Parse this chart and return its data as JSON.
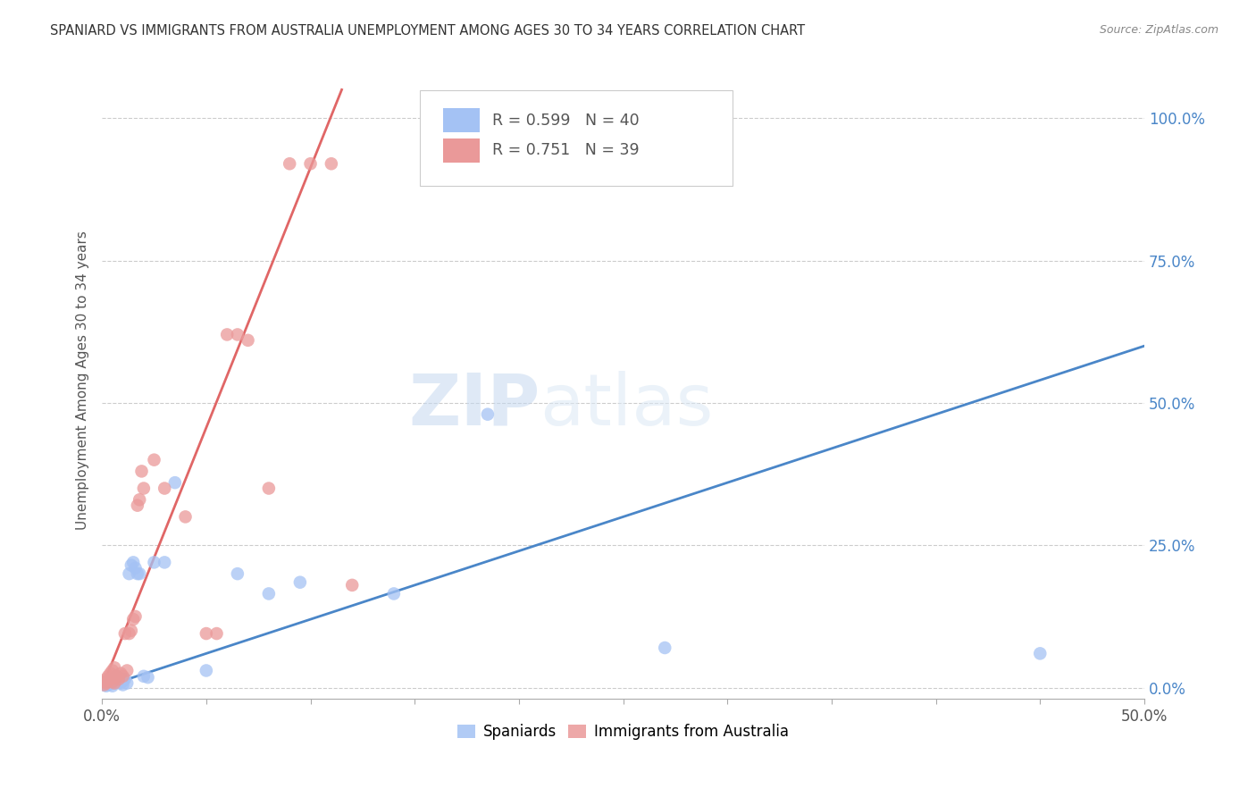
{
  "title": "SPANIARD VS IMMIGRANTS FROM AUSTRALIA UNEMPLOYMENT AMONG AGES 30 TO 34 YEARS CORRELATION CHART",
  "source": "Source: ZipAtlas.com",
  "ylabel": "Unemployment Among Ages 30 to 34 years",
  "x_min": 0.0,
  "x_max": 0.5,
  "y_min": -0.02,
  "y_max": 1.1,
  "blue_R": "0.599",
  "blue_N": "40",
  "pink_R": "0.751",
  "pink_N": "39",
  "legend_label_blue": "Spaniards",
  "legend_label_pink": "Immigrants from Australia",
  "blue_color": "#a4c2f4",
  "pink_color": "#ea9999",
  "blue_line_color": "#4a86c8",
  "pink_line_color": "#e06666",
  "watermark_zip": "ZIP",
  "watermark_atlas": "atlas",
  "blue_dots_x": [
    0.001,
    0.001,
    0.002,
    0.002,
    0.003,
    0.003,
    0.004,
    0.004,
    0.005,
    0.005,
    0.006,
    0.006,
    0.007,
    0.007,
    0.008,
    0.008,
    0.009,
    0.01,
    0.01,
    0.011,
    0.012,
    0.013,
    0.014,
    0.015,
    0.016,
    0.017,
    0.018,
    0.02,
    0.022,
    0.025,
    0.03,
    0.035,
    0.05,
    0.065,
    0.08,
    0.095,
    0.14,
    0.185,
    0.27,
    0.45
  ],
  "blue_dots_y": [
    0.005,
    0.01,
    0.003,
    0.008,
    0.005,
    0.012,
    0.007,
    0.015,
    0.003,
    0.01,
    0.008,
    0.015,
    0.012,
    0.02,
    0.01,
    0.018,
    0.008,
    0.005,
    0.012,
    0.015,
    0.008,
    0.2,
    0.215,
    0.22,
    0.21,
    0.2,
    0.2,
    0.02,
    0.018,
    0.22,
    0.22,
    0.36,
    0.03,
    0.2,
    0.165,
    0.185,
    0.165,
    0.48,
    0.07,
    0.06
  ],
  "pink_dots_x": [
    0.001,
    0.001,
    0.002,
    0.002,
    0.003,
    0.003,
    0.004,
    0.004,
    0.005,
    0.005,
    0.006,
    0.006,
    0.007,
    0.008,
    0.009,
    0.01,
    0.011,
    0.012,
    0.013,
    0.014,
    0.015,
    0.016,
    0.017,
    0.018,
    0.019,
    0.02,
    0.025,
    0.03,
    0.04,
    0.05,
    0.055,
    0.06,
    0.065,
    0.07,
    0.08,
    0.09,
    0.1,
    0.11,
    0.12
  ],
  "pink_dots_y": [
    0.005,
    0.01,
    0.008,
    0.015,
    0.012,
    0.02,
    0.015,
    0.025,
    0.01,
    0.03,
    0.008,
    0.035,
    0.02,
    0.015,
    0.025,
    0.02,
    0.095,
    0.03,
    0.095,
    0.1,
    0.12,
    0.125,
    0.32,
    0.33,
    0.38,
    0.35,
    0.4,
    0.35,
    0.3,
    0.095,
    0.095,
    0.62,
    0.62,
    0.61,
    0.35,
    0.92,
    0.92,
    0.92,
    0.18
  ],
  "blue_line_x": [
    0.0,
    0.5
  ],
  "blue_line_y": [
    0.0,
    0.6
  ],
  "pink_line_x": [
    0.0,
    0.115
  ],
  "pink_line_y": [
    0.0,
    1.05
  ],
  "dpi": 100,
  "figsize": [
    14.06,
    8.92
  ]
}
